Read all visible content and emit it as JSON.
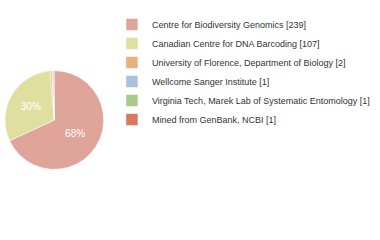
{
  "chart_data": {
    "type": "pie",
    "categories": [
      "Centre for Biodiversity Genomics [239]",
      "Canadian Centre for DNA Barcoding [107]",
      "University of Florence, Department of Biology [2]",
      "Wellcome Sanger Institute [1]",
      "Virginia Tech, Marek Lab of Systematic Entomology [1]",
      "Mined from GenBank, NCBI [1]"
    ],
    "values": [
      68.09,
      30.48,
      0.57,
      0.28,
      0.28,
      0.28
    ],
    "value_labels": [
      "68%",
      "30%",
      null,
      null,
      null,
      null
    ],
    "colors": [
      "#dfa49a",
      "#dfe0a0",
      "#e8b07c",
      "#a9c2de",
      "#a8cc88",
      "#d8785e"
    ],
    "legend": "right",
    "data_labels": true
  }
}
